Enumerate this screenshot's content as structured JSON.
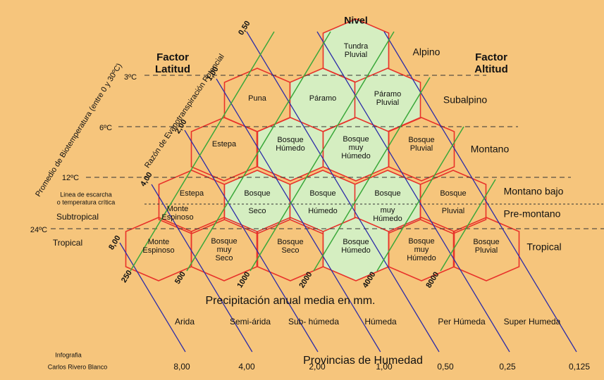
{
  "top_label": "Nivel",
  "left_labels": {
    "factor": [
      "Factor",
      "Latitud"
    ],
    "frost": [
      "Linea de escarcha",
      "o temperatura crítica"
    ],
    "subtropical": "Subtropical",
    "tropical": "Tropical"
  },
  "right_labels": {
    "factor": [
      "Factor",
      "Altitud"
    ],
    "belts": [
      "Alpino",
      "Subalpino",
      "Montano",
      "Montano bajo",
      "Pre-montano",
      "Tropical"
    ]
  },
  "temperatures": [
    "3ºC",
    "6ºC",
    "12ºC",
    "24ºC"
  ],
  "axis_titles": {
    "biotemperature": "Promedio de Biotemperatura (entre 0 y 30ºC)",
    "pet": "Razón de Evapotranspiración Potencial",
    "precipitation": "Precipitación anual media en mm.",
    "humidity": "Provincias de Humedad"
  },
  "pet_labels": [
    "0,50",
    "1,00",
    "2,00",
    "4,00",
    "8,00"
  ],
  "precipitation_labels": [
    "250",
    "500",
    "1000",
    "2000",
    "4000",
    "8000"
  ],
  "humidity_provinces": [
    "Arida",
    "Semi-árida",
    "Sub- húmeda",
    "Húmeda",
    "Per Húmeda",
    "Super Humeda"
  ],
  "ratio_labels": [
    "8,00",
    "4,00",
    "2,00",
    "1,00",
    "0,50",
    "0,25",
    "0,125"
  ],
  "credit": [
    "Infografia",
    "Carlos Rivero Blanco"
  ],
  "cells": [
    [
      "Tundra",
      "Pluvial"
    ],
    [
      "Puna"
    ],
    [
      "Páramo"
    ],
    [
      "Páramo",
      "Pluvial"
    ],
    [
      "Estepa"
    ],
    [
      "Bosque",
      "Húmedo"
    ],
    [
      "Bosque",
      "muy",
      "Húmedo"
    ],
    [
      "Bosque",
      "Pluvial"
    ],
    [
      "Estepa"
    ],
    [
      "Bosque"
    ],
    [
      "Bosque"
    ],
    [
      "Bosque"
    ],
    [
      "Bosque"
    ],
    [
      "Monte",
      "Espinoso"
    ],
    [
      "Seco"
    ],
    [
      "Húmedo"
    ],
    [
      "muy",
      "Húmedo"
    ],
    [
      "Pluvial"
    ],
    [
      "Monte",
      "Espinoso"
    ],
    [
      "Bosque",
      "muy",
      "Seco"
    ],
    [
      "Bosque",
      "Seco"
    ],
    [
      "Bosque",
      "Húmedo"
    ],
    [
      "Bosque",
      "muy",
      "Húmedo"
    ],
    [
      "Bosque",
      "Pluvial"
    ]
  ]
}
